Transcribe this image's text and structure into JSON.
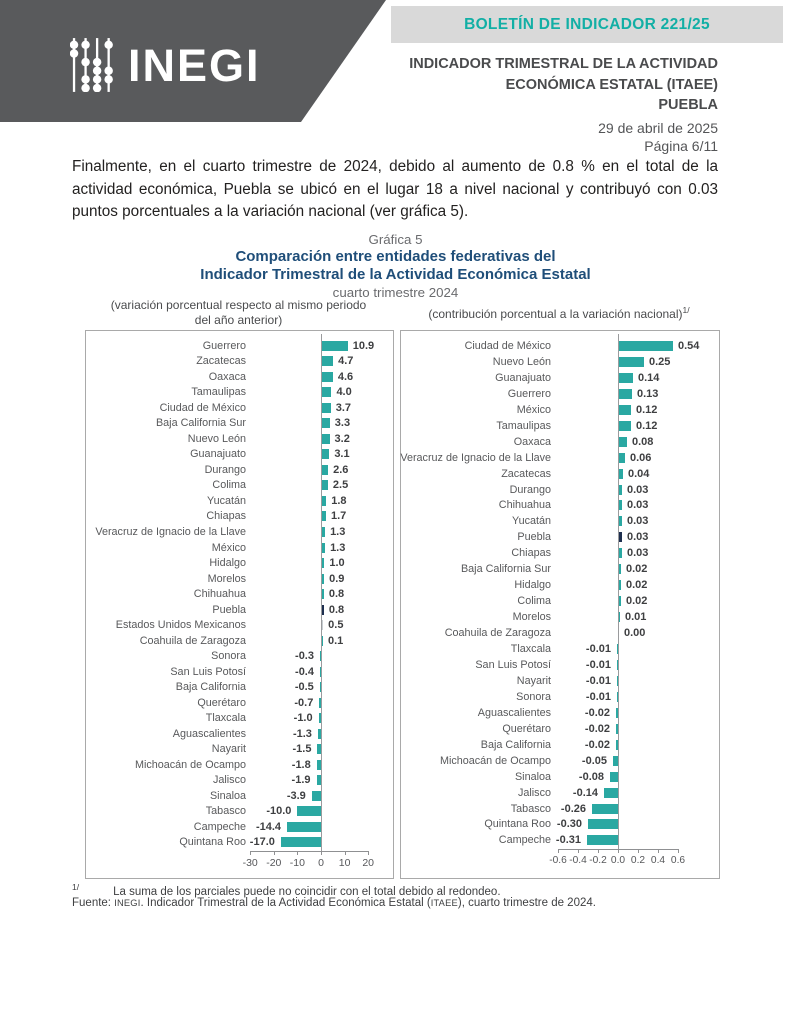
{
  "header": {
    "logo_text": "INEGI",
    "bulletin_label": "BOLETÍN DE INDICADOR 221/25",
    "title_lines": [
      "INDICADOR TRIMESTRAL DE LA ACTIVIDAD",
      "ECONÓMICA ESTATAL (ITAEE)",
      "PUEBLA"
    ],
    "date": "29 de abril de 2025",
    "page": "Página 6/11"
  },
  "body": {
    "paragraph": "Finalmente, en el cuarto trimestre de 2024, debido al aumento de 0.8 % en el total de la actividad económica, Puebla se ubicó en el lugar 18 a nivel nacional y contribuyó con 0.03 puntos porcentuales a la variación nacional (ver gráfica 5)."
  },
  "figure": {
    "label": "Gráfica 5",
    "title_line1": "Comparación entre entidades federativas del",
    "title_line2": "Indicador Trimestral de la Actividad Económica Estatal",
    "subtitle": "cuarto trimestre 2024",
    "left_caption_line1": "(variación porcentual respecto al mismo periodo",
    "left_caption_line2": "del año anterior)",
    "right_caption": "(contribución porcentual a la variación nacional)",
    "right_caption_sup": "1/"
  },
  "footnotes": {
    "mark": "1/",
    "note": "La suma de los parciales puede no coincidir con el total debido al redondeo.",
    "source_prefix": "Fuente: ",
    "source_inegi": "INEGI",
    "source_mid": ". Indicador Trimestral de la Actividad Económica Estatal (",
    "source_itaee": "ITAEE",
    "source_suffix": "), cuarto trimestre de 2024."
  },
  "colors": {
    "teal": "#2AA8A2",
    "navy": "#1E2F4F",
    "gray_bar": "#C7CDD1",
    "accent_teal_text": "#12AFA5",
    "title_blue": "#1F4E79"
  },
  "chart_data": [
    {
      "type": "bar",
      "orientation": "horizontal",
      "title": "(variación porcentual respecto al mismo periodo del año anterior)",
      "xlim": [
        -30,
        20
      ],
      "xticks": [
        -30,
        -20,
        -10,
        0,
        10,
        20
      ],
      "grid": false,
      "legend": false,
      "highlights": {
        "Puebla": "navy",
        "Estados Unidos Mexicanos": "gray_bar"
      },
      "items": [
        {
          "label": "Guerrero",
          "value": 10.9
        },
        {
          "label": "Zacatecas",
          "value": 4.7
        },
        {
          "label": "Oaxaca",
          "value": 4.6
        },
        {
          "label": "Tamaulipas",
          "value": 4.0
        },
        {
          "label": "Ciudad de México",
          "value": 3.7
        },
        {
          "label": "Baja California Sur",
          "value": 3.3
        },
        {
          "label": "Nuevo León",
          "value": 3.2
        },
        {
          "label": "Guanajuato",
          "value": 3.1
        },
        {
          "label": "Durango",
          "value": 2.6
        },
        {
          "label": "Colima",
          "value": 2.5
        },
        {
          "label": "Yucatán",
          "value": 1.8
        },
        {
          "label": "Chiapas",
          "value": 1.7
        },
        {
          "label": "Veracruz de Ignacio de la Llave",
          "value": 1.3
        },
        {
          "label": "México",
          "value": 1.3
        },
        {
          "label": "Hidalgo",
          "value": 1.0
        },
        {
          "label": "Morelos",
          "value": 0.9
        },
        {
          "label": "Chihuahua",
          "value": 0.8
        },
        {
          "label": "Puebla",
          "value": 0.8
        },
        {
          "label": "Estados Unidos Mexicanos",
          "value": 0.5
        },
        {
          "label": "Coahuila de Zaragoza",
          "value": 0.1
        },
        {
          "label": "Sonora",
          "value": -0.3
        },
        {
          "label": "San Luis Potosí",
          "value": -0.4
        },
        {
          "label": "Baja California",
          "value": -0.5
        },
        {
          "label": "Querétaro",
          "value": -0.7
        },
        {
          "label": "Tlaxcala",
          "value": -1.0
        },
        {
          "label": "Aguascalientes",
          "value": -1.3
        },
        {
          "label": "Nayarit",
          "value": -1.5
        },
        {
          "label": "Michoacán de Ocampo",
          "value": -1.8
        },
        {
          "label": "Jalisco",
          "value": -1.9
        },
        {
          "label": "Sinaloa",
          "value": -3.9
        },
        {
          "label": "Tabasco",
          "value": -10.0
        },
        {
          "label": "Campeche",
          "value": -14.4
        },
        {
          "label": "Quintana Roo",
          "value": -17.0
        }
      ]
    },
    {
      "type": "bar",
      "orientation": "horizontal",
      "title": "(contribución porcentual a la variación nacional)",
      "xlim": [
        -0.6,
        0.6
      ],
      "xticks": [
        -0.6,
        -0.4,
        -0.2,
        0.0,
        0.2,
        0.4,
        0.6
      ],
      "grid": false,
      "legend": false,
      "highlights": {
        "Puebla": "navy"
      },
      "items": [
        {
          "label": "Ciudad de México",
          "value": 0.54
        },
        {
          "label": "Nuevo León",
          "value": 0.25
        },
        {
          "label": "Guanajuato",
          "value": 0.14
        },
        {
          "label": "Guerrero",
          "value": 0.13
        },
        {
          "label": "México",
          "value": 0.12
        },
        {
          "label": "Tamaulipas",
          "value": 0.12
        },
        {
          "label": "Oaxaca",
          "value": 0.08
        },
        {
          "label": "Veracruz de Ignacio de la Llave",
          "value": 0.06
        },
        {
          "label": "Zacatecas",
          "value": 0.04
        },
        {
          "label": "Durango",
          "value": 0.03
        },
        {
          "label": "Chihuahua",
          "value": 0.03
        },
        {
          "label": "Yucatán",
          "value": 0.03
        },
        {
          "label": "Puebla",
          "value": 0.03
        },
        {
          "label": "Chiapas",
          "value": 0.03
        },
        {
          "label": "Baja California Sur",
          "value": 0.02
        },
        {
          "label": "Hidalgo",
          "value": 0.02
        },
        {
          "label": "Colima",
          "value": 0.02
        },
        {
          "label": "Morelos",
          "value": 0.01
        },
        {
          "label": "Coahuila de Zaragoza",
          "value": 0.0
        },
        {
          "label": "Tlaxcala",
          "value": -0.01
        },
        {
          "label": "San Luis Potosí",
          "value": -0.01
        },
        {
          "label": "Nayarit",
          "value": -0.01
        },
        {
          "label": "Sonora",
          "value": -0.01
        },
        {
          "label": "Aguascalientes",
          "value": -0.02
        },
        {
          "label": "Querétaro",
          "value": -0.02
        },
        {
          "label": "Baja California",
          "value": -0.02
        },
        {
          "label": "Michoacán de Ocampo",
          "value": -0.05
        },
        {
          "label": "Sinaloa",
          "value": -0.08
        },
        {
          "label": "Jalisco",
          "value": -0.14
        },
        {
          "label": "Tabasco",
          "value": -0.26
        },
        {
          "label": "Quintana Roo",
          "value": -0.3
        },
        {
          "label": "Campeche",
          "value": -0.31
        }
      ]
    }
  ]
}
